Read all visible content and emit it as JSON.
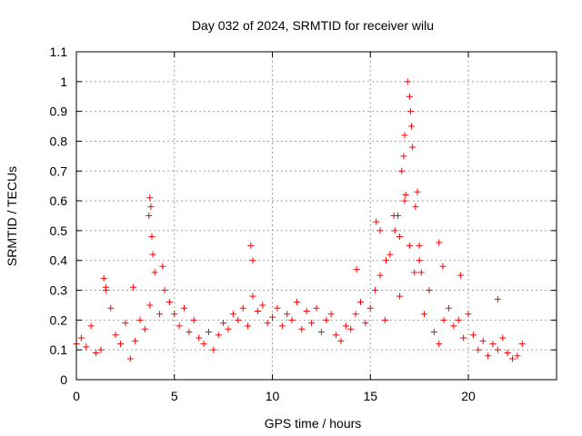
{
  "chart_data": {
    "type": "scatter",
    "title": "Day 032 of 2024, SRMTID for receiver wilu",
    "xlabel": "GPS time / hours",
    "ylabel": "SRMTID / TECUs",
    "xlim": [
      0,
      24.5
    ],
    "ylim": [
      0,
      1.1
    ],
    "xticks": [
      0,
      5,
      10,
      15,
      20
    ],
    "xtick_labels": [
      "0",
      "5",
      "10",
      "15",
      "20"
    ],
    "yticks": [
      0,
      0.1,
      0.2,
      0.3,
      0.4,
      0.5,
      0.6,
      0.7,
      0.8,
      0.9,
      1,
      1.1
    ],
    "ytick_labels": [
      "0",
      "0.1",
      "0.2",
      "0.3",
      "0.4",
      "0.5",
      "0.6",
      "0.7",
      "0.8",
      "0.9",
      "1",
      "1.1"
    ],
    "grid": true,
    "marker": "+",
    "series": [
      {
        "name": "SRMTID",
        "color": "#ff0000",
        "x": [
          0.0,
          0.25,
          0.5,
          0.75,
          1.0,
          1.25,
          1.5,
          1.75,
          2.0,
          2.25,
          2.5,
          2.75,
          3.0,
          3.25,
          3.5,
          3.75,
          4.0,
          4.25,
          4.5,
          4.75,
          5.0,
          5.25,
          5.5,
          5.75,
          6.0,
          6.25,
          6.5,
          6.75,
          7.0,
          7.25,
          7.5,
          7.75,
          8.0,
          8.25,
          8.5,
          8.75,
          9.0,
          9.25,
          9.5,
          9.75,
          10.0,
          10.25,
          10.5,
          10.75,
          11.0,
          11.25,
          11.5,
          11.75,
          12.0,
          12.25,
          12.5,
          12.75,
          13.0,
          13.25,
          13.5,
          13.75,
          14.0,
          14.25,
          14.5,
          14.75,
          15.0,
          15.25,
          15.5,
          15.75,
          16.0,
          16.25,
          16.5,
          16.75,
          17.0,
          17.25,
          17.5,
          17.75,
          18.0,
          18.25,
          18.5,
          18.75,
          19.0,
          19.25,
          19.5,
          19.75,
          20.0,
          20.25,
          20.5,
          20.75,
          21.0,
          21.25,
          21.5,
          21.75,
          22.0,
          22.25,
          22.5,
          22.75,
          3.7,
          3.75,
          3.8,
          3.85,
          3.9,
          16.9,
          17.0,
          17.05,
          17.1,
          17.15,
          16.6,
          16.7,
          16.75,
          16.8,
          16.4,
          16.5,
          17.3,
          17.4,
          17.5,
          17.6,
          8.9,
          9.0,
          18.5,
          18.7,
          19.6,
          21.5,
          1.4,
          1.5,
          2.9,
          4.4,
          14.3,
          15.3,
          15.5,
          15.8,
          16.2
        ],
        "y": [
          0.12,
          0.14,
          0.11,
          0.18,
          0.09,
          0.1,
          0.3,
          0.24,
          0.15,
          0.12,
          0.19,
          0.07,
          0.13,
          0.2,
          0.17,
          0.25,
          0.36,
          0.22,
          0.3,
          0.26,
          0.22,
          0.18,
          0.24,
          0.16,
          0.2,
          0.14,
          0.12,
          0.16,
          0.1,
          0.15,
          0.19,
          0.17,
          0.22,
          0.2,
          0.24,
          0.18,
          0.28,
          0.23,
          0.25,
          0.19,
          0.21,
          0.24,
          0.18,
          0.22,
          0.2,
          0.26,
          0.17,
          0.23,
          0.19,
          0.24,
          0.16,
          0.2,
          0.22,
          0.15,
          0.13,
          0.18,
          0.17,
          0.22,
          0.26,
          0.19,
          0.24,
          0.3,
          0.35,
          0.2,
          0.42,
          0.5,
          0.28,
          0.6,
          0.45,
          0.36,
          0.4,
          0.22,
          0.3,
          0.16,
          0.12,
          0.2,
          0.24,
          0.18,
          0.2,
          0.14,
          0.22,
          0.15,
          0.1,
          0.13,
          0.08,
          0.12,
          0.1,
          0.14,
          0.09,
          0.07,
          0.08,
          0.12,
          0.55,
          0.61,
          0.58,
          0.48,
          0.42,
          1.0,
          0.95,
          0.9,
          0.85,
          0.78,
          0.7,
          0.75,
          0.82,
          0.62,
          0.55,
          0.48,
          0.58,
          0.63,
          0.45,
          0.36,
          0.45,
          0.4,
          0.46,
          0.38,
          0.35,
          0.27,
          0.34,
          0.31,
          0.31,
          0.38,
          0.37,
          0.53,
          0.5,
          0.4,
          0.55
        ]
      }
    ]
  }
}
